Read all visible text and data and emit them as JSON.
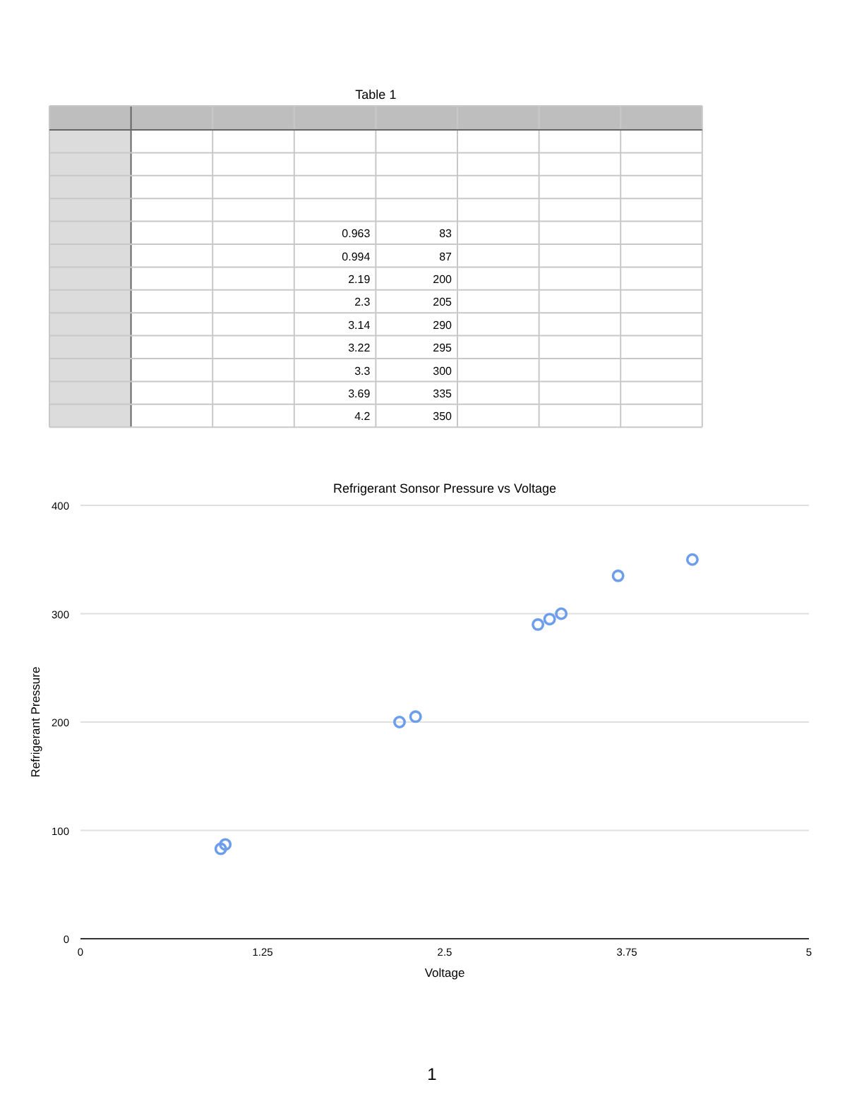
{
  "chart_data": [
    {
      "type": "other",
      "title": "Table 1",
      "annotations": [
        "0.963",
        "83",
        "0.994",
        "87",
        "2.19",
        "200",
        "2.3",
        "205",
        "3.14",
        "290",
        "3.22",
        "295",
        "3.3",
        "300",
        "3.69",
        "335",
        "4.2",
        "350"
      ]
    },
    {
      "type": "scatter",
      "title": "Refrigerant Sonsor Pressure vs Voltage",
      "xlabel": "Voltage",
      "ylabel": "Refrigerant Pressure",
      "x": [
        0.963,
        0.994,
        2.19,
        2.3,
        3.14,
        3.22,
        3.3,
        3.69,
        4.2
      ],
      "values": [
        83,
        87,
        200,
        205,
        290,
        295,
        300,
        335,
        350
      ],
      "color": "#6d9eeb",
      "marker": "circle",
      "xlim": [
        0,
        5
      ],
      "xticks": [
        0,
        1.25,
        2.5,
        3.75,
        5
      ],
      "ylim": [
        0,
        400
      ],
      "yticks": [
        0,
        100,
        200,
        300,
        400
      ],
      "grid": "y",
      "annotations": [
        "1"
      ]
    }
  ]
}
